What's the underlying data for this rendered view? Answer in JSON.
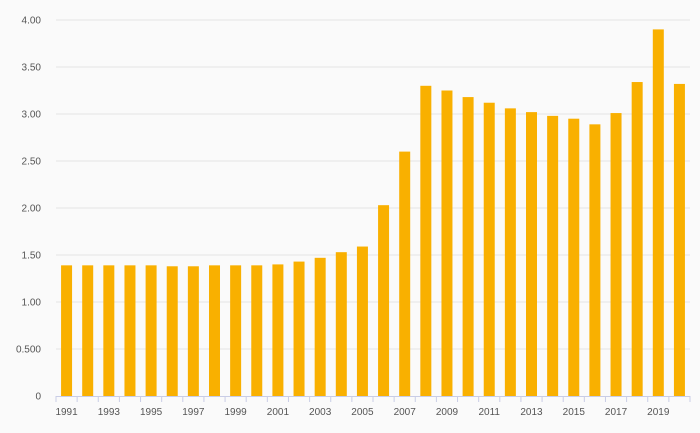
{
  "chart_data": {
    "type": "bar",
    "title": "",
    "xlabel": "",
    "ylabel": "",
    "ylim": [
      0,
      4
    ],
    "grid": true,
    "color": "#f9b000",
    "categories": [
      "1991",
      "1992",
      "1993",
      "1994",
      "1995",
      "1996",
      "1997",
      "1998",
      "1999",
      "2000",
      "2001",
      "2002",
      "2003",
      "2004",
      "2005",
      "2006",
      "2007",
      "2008",
      "2009",
      "2010",
      "2011",
      "2012",
      "2013",
      "2014",
      "2015",
      "2016",
      "2017",
      "2018",
      "2019",
      "2020"
    ],
    "values": [
      1.39,
      1.39,
      1.39,
      1.39,
      1.39,
      1.38,
      1.38,
      1.39,
      1.39,
      1.39,
      1.4,
      1.43,
      1.47,
      1.53,
      1.59,
      2.03,
      2.6,
      3.3,
      3.25,
      3.18,
      3.12,
      3.06,
      3.02,
      2.98,
      2.95,
      2.89,
      3.01,
      3.34,
      3.9,
      3.32
    ],
    "y_ticks": [
      {
        "value": 0,
        "label": "0"
      },
      {
        "value": 0.5,
        "label": "0.500"
      },
      {
        "value": 1,
        "label": "1.00"
      },
      {
        "value": 1.5,
        "label": "1.50"
      },
      {
        "value": 2,
        "label": "2.00"
      },
      {
        "value": 2.5,
        "label": "2.50"
      },
      {
        "value": 3,
        "label": "3.00"
      },
      {
        "value": 3.5,
        "label": "3.50"
      },
      {
        "value": 4,
        "label": "4.00"
      }
    ],
    "x_tick_labels": [
      "1991",
      "1993",
      "1995",
      "1997",
      "1999",
      "2001",
      "2003",
      "2005",
      "2007",
      "2009",
      "2011",
      "2013",
      "2015",
      "2017",
      "2019"
    ]
  }
}
